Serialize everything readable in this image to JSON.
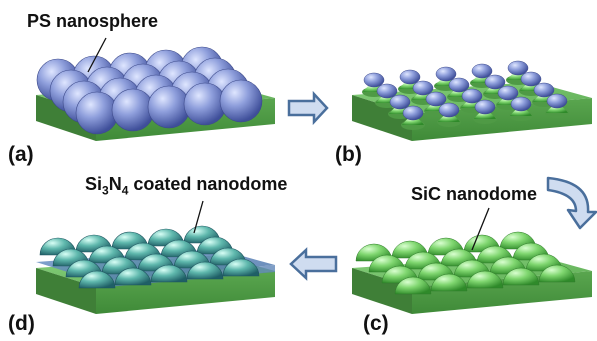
{
  "labels": {
    "ps_nanosphere": "PS nanosphere",
    "si3n4_prefix": "Si",
    "si3n4_sub1": "3",
    "si3n4_mid": "N",
    "si3n4_sub2": "4",
    "si3n4_suffix": " coated nanodome",
    "sic_nanodome": "SiC nanodome"
  },
  "panels": {
    "a": "(a)",
    "b": "(b)",
    "c": "(c)",
    "d": "(d)"
  },
  "colors": {
    "substrate_top": "#74c06a",
    "substrate_front": "#4f9a45",
    "substrate_side": "#3f7f37",
    "sphere_blue": "#7f8fcf",
    "dome_green": "#7fd66f",
    "dome_teal": "#4fa6a0",
    "coating": "#5f86b8",
    "arrow_fill": "#cfdcf0",
    "arrow_stroke": "#4a6f9c"
  },
  "icons": {
    "step_ab": "arrow-right-icon",
    "step_bc": "curved-arrow-down-icon",
    "step_cd": "arrow-left-icon"
  }
}
